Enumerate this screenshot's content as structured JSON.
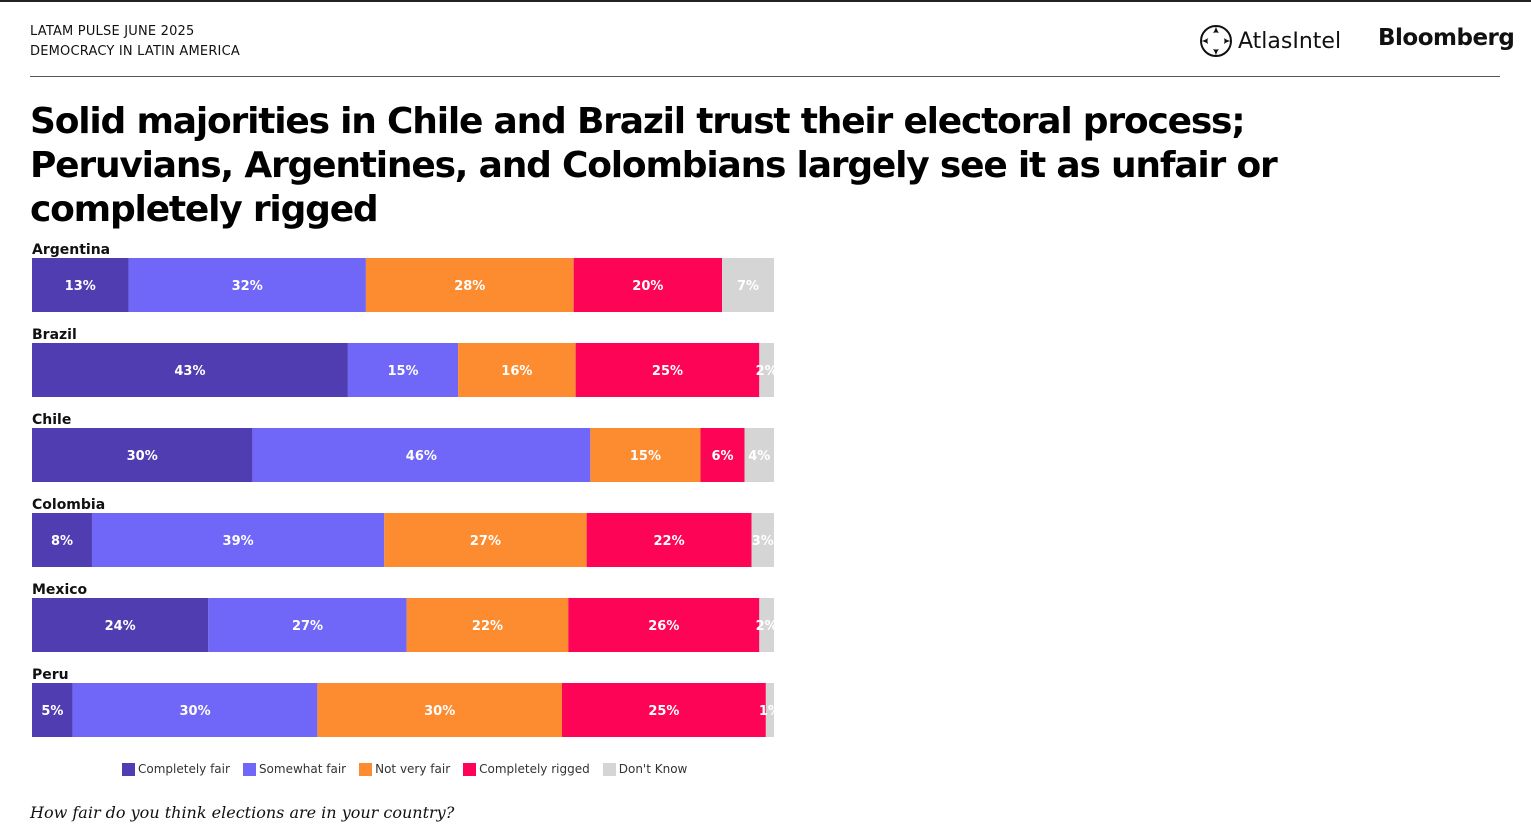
{
  "header": {
    "line1": "LATAM PULSE JUNE 2025",
    "line2": "DEMOCRACY IN LATIN AMERICA",
    "logo_atlas": "AtlasIntel",
    "logo_bloomberg": "Bloomberg"
  },
  "title": "Solid majorities in Chile and Brazil trust their electoral process; Peruvians, Argentines, and Colombians largely see it as unfair or completely rigged",
  "question": "How fair do you think elections are in your country?",
  "colors": {
    "completely_fair": "#4f3db1",
    "somewhat_fair": "#7066f7",
    "not_very_fair": "#fd8b2f",
    "completely_rigged": "#fd0456",
    "dont_know": "#d5d5d5"
  },
  "chart_data": {
    "type": "bar",
    "orientation": "horizontal",
    "stacked": true,
    "xlim": [
      0,
      100
    ],
    "grid": false,
    "legend_position": "bottom",
    "categories": [
      "Argentina",
      "Brazil",
      "Chile",
      "Colombia",
      "Mexico",
      "Peru"
    ],
    "series": [
      {
        "name": "Completely fair",
        "values": [
          13,
          43,
          30,
          8,
          24,
          5
        ]
      },
      {
        "name": "Somewhat fair",
        "values": [
          32,
          15,
          46,
          39,
          27,
          30
        ]
      },
      {
        "name": "Not very fair",
        "values": [
          28,
          16,
          15,
          27,
          22,
          30
        ]
      },
      {
        "name": "Completely rigged",
        "values": [
          20,
          25,
          6,
          22,
          26,
          25
        ]
      },
      {
        "name": "Don't Know",
        "values": [
          7,
          2,
          4,
          3,
          2,
          1
        ]
      }
    ],
    "value_suffix": "%"
  }
}
